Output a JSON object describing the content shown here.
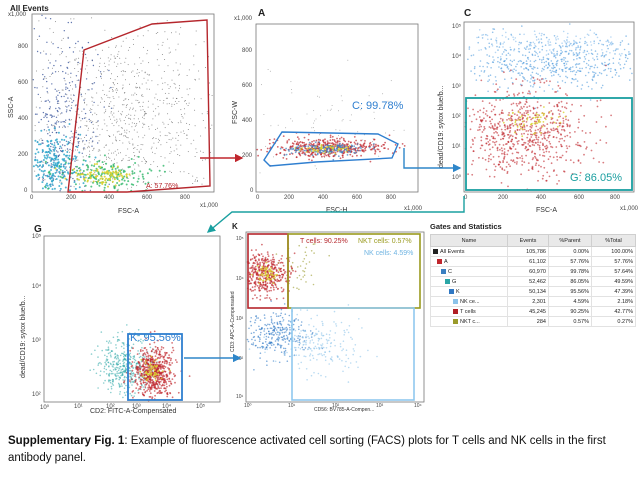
{
  "figure": {
    "panel_all": {
      "title": "All Events",
      "xlabel": "FSC-A",
      "ylabel": "SSC-A",
      "x_ticks": [
        "0",
        "200",
        "400",
        "600",
        "800"
      ],
      "x_unit": "x1,000",
      "y_ticks": [
        "0",
        "200",
        "400",
        "600",
        "800"
      ],
      "y_unit": "x1,000",
      "gate_label": "A: 57.76%"
    },
    "panel_a": {
      "title": "A",
      "xlabel": "FSC-H",
      "ylabel": "FSC-W",
      "x_ticks": [
        "0",
        "200",
        "400",
        "600",
        "800"
      ],
      "x_unit": "x1,000",
      "y_ticks": [
        "0",
        "200",
        "400",
        "600",
        "800"
      ],
      "y_unit": "x1,000",
      "gate_label": "C: 99.78%"
    },
    "panel_c": {
      "title": "C",
      "xlabel": "FSC-A",
      "ylabel": "dead/CD19: sytox blue/b...",
      "x_ticks": [
        "0",
        "200",
        "400",
        "600",
        "800"
      ],
      "x_unit": "x1,000",
      "y_ticks": [
        "10⁵",
        "10⁴",
        "10³",
        "10²",
        "10¹",
        "10⁰"
      ],
      "gate_label": "G: 86.05%"
    },
    "panel_g": {
      "title": "G",
      "xlabel": "CD2: FITC-A-Compensated",
      "ylabel": "dead/CD19: sytox blue/b...",
      "x_ticks": [
        "10⁰",
        "10¹",
        "10²",
        "10³",
        "10⁴",
        "10⁵"
      ],
      "y_ticks": [
        "10⁵",
        "10⁴",
        "10³",
        "10²"
      ],
      "gate_label": "K: 95.56%"
    },
    "panel_k": {
      "title": "K",
      "xlabel": "CD56: BV785-A-Compen...",
      "ylabel": "CD3: APC-A-Compensated",
      "x_ticks": [
        "10⁰",
        "10¹",
        "10²",
        "10³",
        "10⁴"
      ],
      "y_ticks": [
        "10⁵",
        "10⁴",
        "10³",
        "10²",
        "10¹"
      ],
      "gate_tcells": "T cells: 90.25%",
      "gate_nkt": "NKT cells: 0.57%",
      "gate_nk": "NK cells: 4.59%"
    }
  },
  "stats": {
    "title": "Gates and Statistics",
    "headers": [
      "Name",
      "Events",
      "%Parent",
      "%Total"
    ],
    "rows": [
      {
        "name": "All Events",
        "events": "105,786",
        "parent": "0.00%",
        "total": "100.00%",
        "color": "#222222",
        "indent": 0
      },
      {
        "name": "A",
        "events": "61,102",
        "parent": "57.76%",
        "total": "57.76%",
        "color": "#c0262d",
        "indent": 1
      },
      {
        "name": "C",
        "events": "60,970",
        "parent": "99.78%",
        "total": "57.64%",
        "color": "#3a7fc1",
        "indent": 2
      },
      {
        "name": "G",
        "events": "52,462",
        "parent": "86.05%",
        "total": "49.59%",
        "color": "#2aa6a6",
        "indent": 3
      },
      {
        "name": "K",
        "events": "50,134",
        "parent": "95.56%",
        "total": "47.39%",
        "color": "#2f78c4",
        "indent": 4
      },
      {
        "name": "NK ce...",
        "events": "2,301",
        "parent": "4.59%",
        "total": "2.18%",
        "color": "#8cc3ea",
        "indent": 5
      },
      {
        "name": "T cells",
        "events": "45,245",
        "parent": "90.25%",
        "total": "42.77%",
        "color": "#b01e24",
        "indent": 5
      },
      {
        "name": "NKT c...",
        "events": "284",
        "parent": "0.57%",
        "total": "0.27%",
        "color": "#9a9a2a",
        "indent": 5
      }
    ]
  },
  "caption": {
    "label": "Supplementary Fig. 1",
    "text": ": Example of fluorescence activated cell sorting (FACS) plots for T cells and NK cells in the first antibody panel."
  },
  "colors": {
    "gate_red": "#b5262c",
    "gate_blue": "#2f7fd0",
    "gate_teal": "#1a9fa0",
    "gate_olive": "#9a9a1e",
    "gate_lightblue": "#8fc8ee",
    "arrow_red": "#c0262d",
    "arrow_blue": "#2e86c9",
    "arrow_teal": "#1aa0a0"
  }
}
